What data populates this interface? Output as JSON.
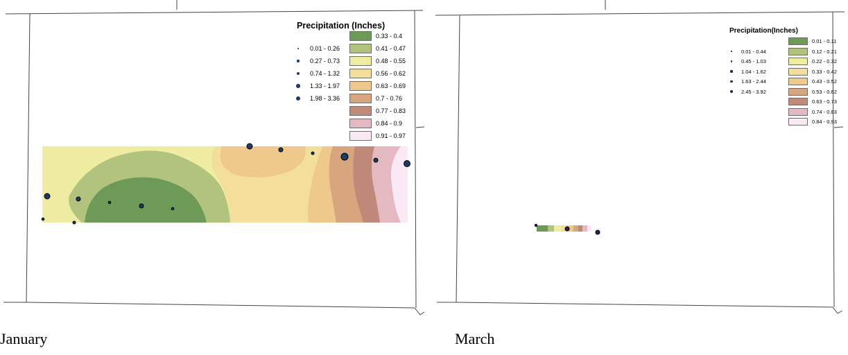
{
  "panels": [
    {
      "caption": "January",
      "legend": {
        "title": "Precipitation (Inches)",
        "classes": [
          {
            "label": "0.33 - 0.4",
            "color": "#6e9a57"
          },
          {
            "label": "0.41 - 0.47",
            "color": "#b2c37e"
          },
          {
            "label": "0.48 - 0.55",
            "color": "#efeda2"
          },
          {
            "label": "0.56 - 0.62",
            "color": "#f3de9b"
          },
          {
            "label": "0.63 - 0.69",
            "color": "#efc98c"
          },
          {
            "label": "0.7 - 0.76",
            "color": "#d7a67e"
          },
          {
            "label": "0.77 - 0.83",
            "color": "#c08a7b"
          },
          {
            "label": "0.84 - 0.9",
            "color": "#e4b9c2"
          },
          {
            "label": "0.91 - 0.97",
            "color": "#fbeaf6"
          }
        ],
        "symbols": [
          {
            "label": "0.01 - 0.26",
            "size": 1
          },
          {
            "label": "0.27 - 0.73",
            "size": 2
          },
          {
            "label": "0.74 - 1.32",
            "size": 3
          },
          {
            "label": "1.33 - 1.97",
            "size": 4
          },
          {
            "label": "1.98 - 3.36",
            "size": 5
          }
        ],
        "symbol_color": "#1f3c66"
      }
    },
    {
      "caption": "March",
      "legend": {
        "title": "Precipitation(Inches)",
        "classes": [
          {
            "label": "0.01 - 0.11",
            "color": "#6e9a57"
          },
          {
            "label": "0.12 - 0.21",
            "color": "#b2c37e"
          },
          {
            "label": "0.22 - 0.32",
            "color": "#efeda2"
          },
          {
            "label": "0.33 - 0.42",
            "color": "#f3de9b"
          },
          {
            "label": "0.43 - 0.52",
            "color": "#efc98c"
          },
          {
            "label": "0.53 - 0.62",
            "color": "#d7a67e"
          },
          {
            "label": "0.63 - 0.73",
            "color": "#c08a7b"
          },
          {
            "label": "0.74 - 0.83",
            "color": "#e4b9c2"
          },
          {
            "label": "0.84 - 0.93",
            "color": "#fbeaf6"
          }
        ],
        "symbols": [
          {
            "label": "0.01 - 0.44",
            "size": 1
          },
          {
            "label": "0.45 - 1.03",
            "size": 2
          },
          {
            "label": "1.04 - 1.62",
            "size": 3
          },
          {
            "label": "1.63 - 2.44",
            "size": 4
          },
          {
            "label": "2.45 - 3.92",
            "size": 5
          }
        ],
        "symbol_color": "#3b1a52"
      }
    }
  ]
}
